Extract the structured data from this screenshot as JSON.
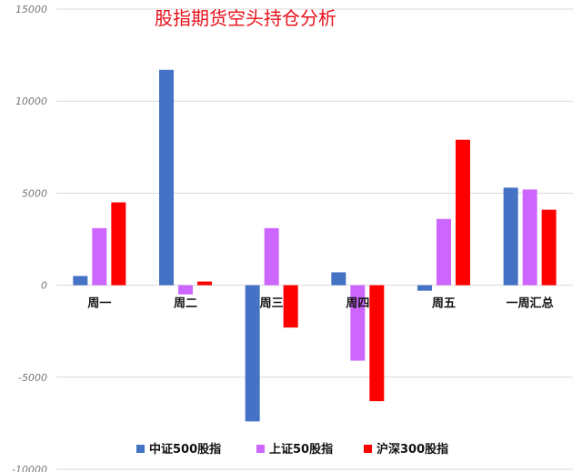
{
  "chart_data": {
    "type": "bar",
    "title": "股指期货空头持仓分析",
    "categories": [
      "周一",
      "周二",
      "周三",
      "周四",
      "周五",
      "一周汇总"
    ],
    "series": [
      {
        "name": "中证500股指",
        "color": "#4472c4",
        "values": [
          500,
          11700,
          -7400,
          700,
          -300,
          5300
        ]
      },
      {
        "name": "上证50股指",
        "color": "#cc66ff",
        "values": [
          3100,
          -500,
          3100,
          -4100,
          3600,
          5200
        ]
      },
      {
        "name": "沪深300股指",
        "color": "#ff0000",
        "values": [
          4500,
          200,
          -2300,
          -6300,
          7900,
          4100
        ]
      }
    ],
    "ylim": [
      -10000,
      15000
    ],
    "yticks": [
      "-10000",
      "-5000",
      "0",
      "5000",
      "10000",
      "15000"
    ],
    "grid": true,
    "legend_position": "bottom"
  }
}
